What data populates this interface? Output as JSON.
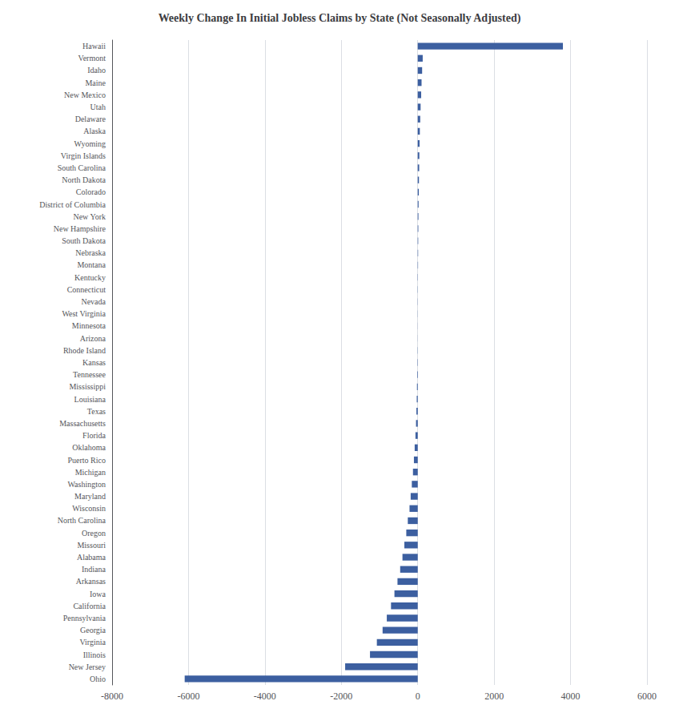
{
  "chart_data": {
    "type": "bar",
    "orientation": "horizontal",
    "title": "Weekly Change In Initial Jobless Claims by State (Not Seasonally Adjusted)",
    "categories": [
      "Hawaii",
      "Vermont",
      "Idaho",
      "Maine",
      "New Mexico",
      "Utah",
      "Delaware",
      "Alaska",
      "Wyoming",
      "Virgin Islands",
      "South Carolina",
      "North Dakota",
      "Colorado",
      "District of Columbia",
      "New York",
      "New Hampshire",
      "South Dakota",
      "Nebraska",
      "Montana",
      "Kentucky",
      "Connecticut",
      "Nevada",
      "West Virginia",
      "Minnesota",
      "Arizona",
      "Rhode Island",
      "Kansas",
      "Tennessee",
      "Mississippi",
      "Louisiana",
      "Texas",
      "Massachusetts",
      "Florida",
      "Oklahoma",
      "Puerto Rico",
      "Michigan",
      "Washington",
      "Maryland",
      "Wisconsin",
      "North Carolina",
      "Oregon",
      "Missouri",
      "Alabama",
      "Indiana",
      "Arkansas",
      "Iowa",
      "California",
      "Pennsylvania",
      "Georgia",
      "Virginia",
      "Illinois",
      "New Jersey",
      "Ohio"
    ],
    "values": [
      3800,
      130,
      115,
      100,
      90,
      75,
      65,
      55,
      48,
      42,
      38,
      32,
      28,
      22,
      18,
      15,
      12,
      10,
      8,
      6,
      5,
      4,
      3,
      2,
      -2,
      -5,
      -8,
      -14,
      -20,
      -26,
      -35,
      -45,
      -60,
      -80,
      -100,
      -125,
      -155,
      -185,
      -215,
      -260,
      -300,
      -350,
      -400,
      -460,
      -530,
      -610,
      -700,
      -810,
      -920,
      -1070,
      -1250,
      -1900,
      -6100
    ],
    "color": "#3c5fa0",
    "xlim": [
      -8000,
      6000
    ],
    "xticks": [
      -8000,
      -6000,
      -4000,
      -2000,
      0,
      2000,
      4000,
      6000
    ],
    "grid": true
  }
}
